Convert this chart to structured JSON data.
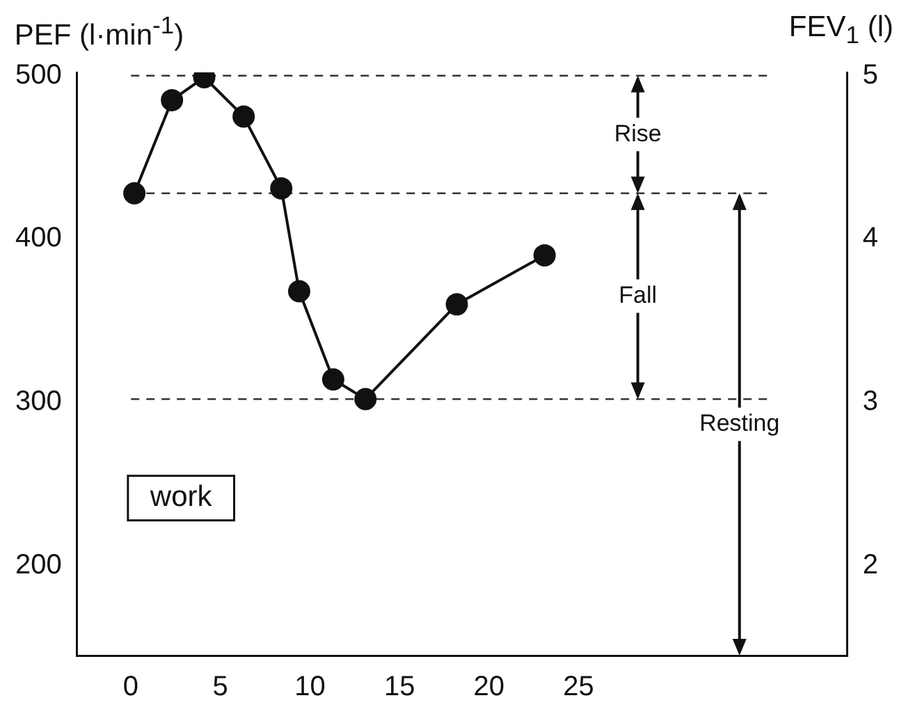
{
  "chart_data": {
    "type": "line",
    "ylabel": "PEF (l·min$^{-1}$)",
    "y2label": "FEV$_{1}$ (l)",
    "x": [
      0.2,
      2.3,
      4.1,
      6.3,
      8.4,
      9.4,
      11.3,
      13.1,
      18.2,
      23.1
    ],
    "values": [
      428,
      485,
      499,
      475,
      431,
      368,
      314,
      302,
      360,
      390
    ],
    "color": "#111111",
    "marker": "circle",
    "line_style": "solid",
    "xlim": [
      -3,
      40
    ],
    "xticks": [
      0,
      5,
      10,
      15,
      20,
      25
    ],
    "ylim": [
      145,
      502
    ],
    "yticks": [
      200,
      300,
      400,
      500
    ],
    "y2lim": [
      1.45,
      5.02
    ],
    "y2ticks": [
      2,
      3,
      4,
      5
    ],
    "grid": false,
    "legend": false,
    "ref_lines": [
      {
        "axis": "y",
        "value": 500,
        "line_style": "dashed",
        "color": "#333333"
      },
      {
        "axis": "y",
        "value": 428,
        "line_style": "dashed",
        "color": "#333333"
      },
      {
        "axis": "y",
        "value": 302,
        "line_style": "dashed",
        "color": "#333333"
      }
    ],
    "annotations": [
      "Rise",
      "Fall",
      "Resting",
      "work"
    ]
  }
}
